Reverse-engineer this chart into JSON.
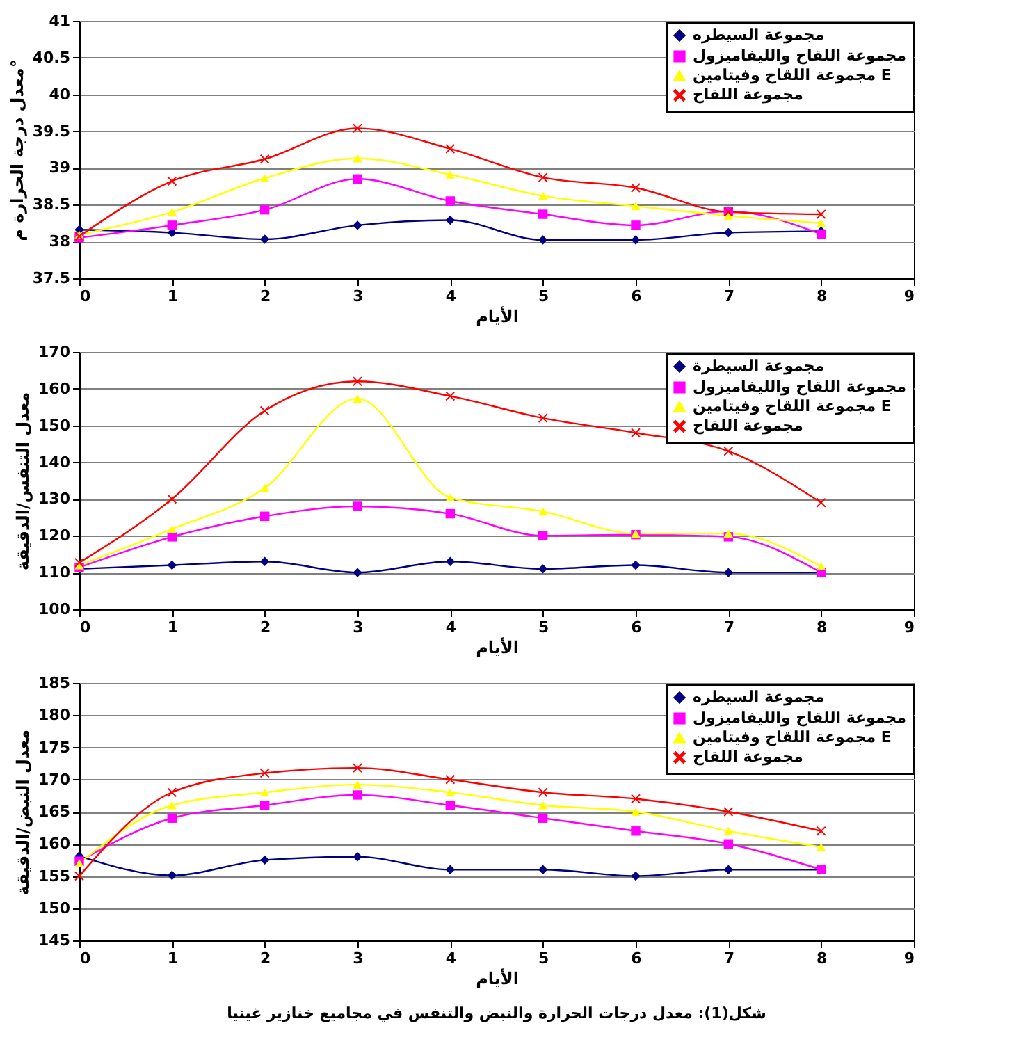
{
  "chart_data": [
    {
      "type": "line",
      "xlabel": "الأيام",
      "ylabel": "معدل درجة الحرارة م°",
      "x": [
        0,
        1,
        2,
        3,
        4,
        5,
        6,
        7,
        8
      ],
      "xlim": [
        0,
        9
      ],
      "xticks": [
        0,
        1,
        2,
        3,
        4,
        5,
        6,
        7,
        8,
        9
      ],
      "ylim": [
        37.5,
        41
      ],
      "yticks": [
        37.5,
        38,
        38.5,
        39,
        39.5,
        40,
        40.5,
        41
      ],
      "grid": "y",
      "legend": "top right",
      "line_style": "solid",
      "series": [
        {
          "name": "مجموعة السيطره",
          "color": "#000080",
          "marker": "diamond",
          "values": [
            38.16,
            38.12,
            38.03,
            38.22,
            38.29,
            38.02,
            38.02,
            38.12,
            38.14
          ]
        },
        {
          "name": "مجموعة اللقاح والليفاميزول",
          "color": "#ff00ff",
          "marker": "square",
          "values": [
            38.05,
            38.22,
            38.43,
            38.85,
            38.55,
            38.37,
            38.22,
            38.41,
            38.1
          ]
        },
        {
          "name": "مجموعة اللقاح وفيتامين E",
          "color": "#ffff00",
          "marker": "triangle",
          "values": [
            38.09,
            38.4,
            38.86,
            39.13,
            38.91,
            38.62,
            38.48,
            38.35,
            38.25
          ]
        },
        {
          "name": "مجموعة اللقاح",
          "color": "#ff0000",
          "marker": "cross",
          "values": [
            38.07,
            38.82,
            39.12,
            39.54,
            39.26,
            38.87,
            38.73,
            38.4,
            38.37
          ]
        }
      ]
    },
    {
      "type": "line",
      "xlabel": "الأيام",
      "ylabel": "معدل التنفس/الدقيقة",
      "x": [
        0,
        1,
        2,
        3,
        4,
        5,
        6,
        7,
        8
      ],
      "xlim": [
        0,
        9
      ],
      "xticks": [
        0,
        1,
        2,
        3,
        4,
        5,
        6,
        7,
        8,
        9
      ],
      "ylim": [
        100,
        170
      ],
      "yticks": [
        100,
        110,
        120,
        130,
        140,
        150,
        160,
        170
      ],
      "grid": "y",
      "legend": "top right",
      "line_style": "solid",
      "series": [
        {
          "name": "مجموعة السيطرة",
          "color": "#000080",
          "marker": "diamond",
          "values": [
            111,
            112,
            113,
            110,
            113,
            111,
            112,
            110,
            110
          ]
        },
        {
          "name": "مجموعة اللقاح والليفاميزول",
          "color": "#ff00ff",
          "marker": "square",
          "values": [
            111.4,
            119.7,
            125.3,
            128,
            126,
            120,
            120.3,
            119.7,
            110
          ]
        },
        {
          "name": "مجموعة اللقاح وفيتامين E",
          "color": "#ffff00",
          "marker": "triangle",
          "values": [
            112,
            121.8,
            133,
            157.3,
            130.4,
            126.6,
            120.6,
            120.6,
            111.7
          ]
        },
        {
          "name": "مجموعة اللقاح",
          "color": "#ff0000",
          "marker": "cross",
          "values": [
            112.7,
            130,
            154,
            162,
            158,
            152,
            148,
            143,
            129
          ]
        }
      ]
    },
    {
      "type": "line",
      "xlabel": "الأيام",
      "ylabel": "معدل النبض/الدقيقة",
      "x": [
        0,
        1,
        2,
        3,
        4,
        5,
        6,
        7,
        8
      ],
      "xlim": [
        0,
        9
      ],
      "xticks": [
        0,
        1,
        2,
        3,
        4,
        5,
        6,
        7,
        8,
        9
      ],
      "ylim": [
        145,
        185
      ],
      "yticks": [
        145,
        150,
        155,
        160,
        165,
        170,
        175,
        180,
        185
      ],
      "grid": "y",
      "legend": "top right",
      "line_style": "solid",
      "annotations": [
        "شكل(1): معدل درجات الحرارة والنبض والتنفس في مجاميع خنازير غينيا"
      ],
      "series": [
        {
          "name": "مجموعة السيطره",
          "color": "#000080",
          "marker": "diamond",
          "values": [
            158.1,
            155.1,
            157.5,
            158,
            156,
            156,
            155,
            156,
            156
          ]
        },
        {
          "name": "مجموعة اللقاح والليفاميزول",
          "color": "#ff00ff",
          "marker": "square",
          "values": [
            157.3,
            164,
            166,
            167.6,
            166,
            164,
            162,
            160,
            156
          ]
        },
        {
          "name": "مجموعة اللقاح وفيتامين E",
          "color": "#ffff00",
          "marker": "triangle",
          "values": [
            157,
            166,
            168,
            169.2,
            168,
            166,
            165,
            162,
            159.5
          ]
        },
        {
          "name": "مجموعة اللقاح",
          "color": "#ff0000",
          "marker": "cross",
          "values": [
            155,
            168,
            171,
            171.8,
            170,
            168,
            167,
            165,
            162
          ]
        }
      ]
    }
  ]
}
